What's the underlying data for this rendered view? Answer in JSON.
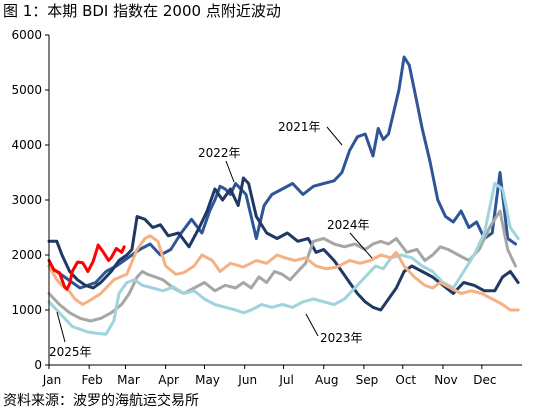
{
  "title": "图 1：本期 BDI 指数在 2000 点附近波动",
  "source": "资料来源：波罗的海航运交易所",
  "chart_data": {
    "type": "line",
    "x_ticks": [
      "Jan",
      "Feb",
      "Mar",
      "Apr",
      "May",
      "Jun",
      "Jul",
      "Aug",
      "Sep",
      "Oct",
      "Nov",
      "Dec"
    ],
    "y_ticks": [
      0,
      1000,
      2000,
      3000,
      4000,
      5000,
      6000
    ],
    "ylim": [
      0,
      6000
    ],
    "xlim": [
      0,
      365
    ],
    "grid": false,
    "legend": "direct labels",
    "series": [
      {
        "name": "2025年",
        "color": "#ff0000",
        "x": [
          0,
          4,
          8,
          12,
          14,
          16,
          18,
          22,
          26,
          30,
          34,
          38,
          42,
          46,
          48,
          52,
          56,
          58
        ],
        "values": [
          1900,
          1720,
          1680,
          1420,
          1380,
          1480,
          1700,
          1870,
          1860,
          1700,
          1880,
          2180,
          2050,
          1900,
          1950,
          2120,
          2050,
          2150
        ]
      },
      {
        "name": "2024年",
        "color": "#f5b183",
        "x": [
          0,
          6,
          10,
          16,
          20,
          26,
          32,
          40,
          50,
          60,
          68,
          74,
          78,
          84,
          90,
          98,
          104,
          112,
          118,
          126,
          132,
          140,
          150,
          160,
          168,
          176,
          182,
          190,
          198,
          206,
          214,
          222,
          232,
          240,
          248,
          256,
          264,
          268,
          274,
          282,
          290,
          296,
          302,
          310,
          318,
          326,
          334,
          342,
          350,
          356,
          362
        ],
        "values": [
          1800,
          1550,
          1450,
          1330,
          1200,
          1100,
          1180,
          1300,
          1550,
          1650,
          2100,
          2300,
          2350,
          2250,
          1800,
          1650,
          1680,
          1800,
          2000,
          1900,
          1700,
          1850,
          1780,
          1900,
          1850,
          2000,
          1950,
          1900,
          1950,
          1800,
          1750,
          1780,
          1900,
          1850,
          1900,
          2000,
          1950,
          2050,
          1800,
          1600,
          1450,
          1400,
          1500,
          1400,
          1300,
          1350,
          1300,
          1200,
          1100,
          1000,
          1000
        ]
      },
      {
        "name": "2023年",
        "color": "#9fd3dd",
        "x": [
          0,
          6,
          12,
          18,
          24,
          30,
          36,
          44,
          50,
          54,
          60,
          66,
          72,
          80,
          88,
          96,
          104,
          112,
          120,
          128,
          136,
          144,
          150,
          156,
          164,
          172,
          180,
          188,
          196,
          204,
          212,
          220,
          228,
          236,
          244,
          252,
          258,
          264,
          272,
          280,
          288,
          296,
          304,
          312,
          320,
          328,
          336,
          344,
          350,
          356,
          362
        ],
        "values": [
          1150,
          1000,
          850,
          700,
          650,
          600,
          580,
          560,
          800,
          1300,
          1500,
          1550,
          1450,
          1400,
          1350,
          1420,
          1300,
          1350,
          1200,
          1100,
          1050,
          1000,
          950,
          1000,
          1100,
          1050,
          1100,
          1050,
          1150,
          1200,
          1150,
          1100,
          1200,
          1400,
          1600,
          1800,
          1750,
          1950,
          2000,
          1950,
          1800,
          1700,
          1500,
          1400,
          1700,
          2000,
          2400,
          3300,
          3200,
          2500,
          2300
        ]
      },
      {
        "name": "",
        "color": "#a6a6a6",
        "x": [
          0,
          8,
          16,
          24,
          32,
          40,
          48,
          56,
          62,
          68,
          72,
          76,
          82,
          88,
          96,
          104,
          112,
          120,
          128,
          136,
          144,
          150,
          156,
          162,
          168,
          174,
          180,
          186,
          192,
          198,
          204,
          212,
          220,
          228,
          236,
          244,
          250,
          256,
          262,
          268,
          276,
          284,
          290,
          296,
          302,
          308,
          316,
          324,
          332,
          340,
          348,
          354,
          360
        ],
        "values": [
          1300,
          1100,
          950,
          850,
          800,
          850,
          950,
          1100,
          1300,
          1600,
          1700,
          1650,
          1600,
          1550,
          1400,
          1300,
          1400,
          1500,
          1350,
          1450,
          1400,
          1500,
          1400,
          1600,
          1500,
          1700,
          1650,
          1550,
          1700,
          1850,
          2250,
          2300,
          2200,
          2150,
          2200,
          2100,
          2200,
          2250,
          2200,
          2300,
          2050,
          2100,
          1900,
          2000,
          2150,
          2100,
          2000,
          1900,
          2100,
          2500,
          2800,
          2100,
          1800
        ]
      },
      {
        "name": "2022年",
        "color": "#203864",
        "x": [
          0,
          6,
          10,
          16,
          22,
          28,
          34,
          40,
          48,
          54,
          60,
          64,
          68,
          74,
          80,
          86,
          92,
          100,
          108,
          116,
          122,
          128,
          134,
          140,
          146,
          150,
          154,
          160,
          168,
          176,
          184,
          192,
          200,
          206,
          212,
          220,
          226,
          232,
          238,
          244,
          250,
          256,
          262,
          268,
          274,
          280,
          288,
          296,
          304,
          312,
          320,
          328,
          336,
          344,
          350,
          356,
          362
        ],
        "values": [
          2250,
          2250,
          2000,
          1700,
          1550,
          1450,
          1400,
          1500,
          1700,
          1900,
          2000,
          2100,
          2700,
          2650,
          2500,
          2550,
          2350,
          2400,
          2150,
          2500,
          2800,
          3200,
          3000,
          3200,
          2900,
          3400,
          3300,
          2700,
          2400,
          2300,
          2400,
          2250,
          2300,
          2050,
          2100,
          1900,
          1700,
          1500,
          1300,
          1150,
          1050,
          1000,
          1200,
          1400,
          1700,
          1800,
          1700,
          1600,
          1450,
          1300,
          1500,
          1450,
          1350,
          1350,
          1600,
          1700,
          1500
        ]
      },
      {
        "name": "2021年",
        "color": "#2f5597",
        "x": [
          0,
          6,
          12,
          18,
          24,
          30,
          36,
          44,
          52,
          58,
          64,
          70,
          78,
          86,
          94,
          102,
          110,
          118,
          124,
          128,
          132,
          136,
          140,
          144,
          148,
          152,
          156,
          160,
          166,
          172,
          180,
          188,
          196,
          204,
          212,
          220,
          226,
          232,
          238,
          244,
          250,
          254,
          258,
          262,
          266,
          270,
          274,
          278,
          282,
          288,
          294,
          300,
          306,
          312,
          318,
          324,
          330,
          336,
          342,
          348,
          354,
          360
        ],
        "values": [
          1800,
          1700,
          1600,
          1500,
          1400,
          1450,
          1500,
          1700,
          1800,
          1900,
          2000,
          2100,
          2200,
          2000,
          2100,
          2400,
          2650,
          2400,
          2800,
          3000,
          3250,
          3200,
          3100,
          3300,
          3200,
          3100,
          2700,
          2300,
          2900,
          3100,
          3200,
          3300,
          3100,
          3250,
          3300,
          3350,
          3500,
          3900,
          4150,
          4200,
          3800,
          4300,
          4100,
          4200,
          4600,
          5000,
          5600,
          5450,
          5000,
          4300,
          3700,
          3000,
          2700,
          2600,
          2800,
          2500,
          2600,
          2300,
          2400,
          3500,
          2300,
          2200
        ]
      }
    ]
  }
}
